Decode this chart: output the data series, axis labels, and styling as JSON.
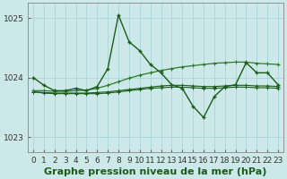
{
  "title": "Graphe pression niveau de la mer (hPa)",
  "background_color": "#cce8e8",
  "grid_color_v": "#aad4d4",
  "grid_color_h": "#aad4d4",
  "line_color_dark": "#1a5c1a",
  "line_color_mid": "#2d7a2d",
  "ylim": [
    1022.75,
    1025.25
  ],
  "yticks": [
    1023,
    1024,
    1025
  ],
  "xlim": [
    -0.5,
    23.5
  ],
  "xticks": [
    0,
    1,
    2,
    3,
    4,
    5,
    6,
    7,
    8,
    9,
    10,
    11,
    12,
    13,
    14,
    15,
    16,
    17,
    18,
    19,
    20,
    21,
    22,
    23
  ],
  "series_spiky": [
    1024.0,
    1023.87,
    1023.78,
    1023.78,
    1023.82,
    1023.78,
    1023.85,
    1024.15,
    1025.05,
    1024.6,
    1024.45,
    1024.22,
    1024.08,
    1023.88,
    1023.82,
    1023.52,
    1023.33,
    1023.68,
    1023.85,
    1023.88,
    1024.25,
    1024.08,
    1024.08,
    1023.88
  ],
  "series_trend": [
    1023.78,
    1023.78,
    1023.77,
    1023.77,
    1023.78,
    1023.79,
    1023.82,
    1023.87,
    1023.93,
    1023.99,
    1024.04,
    1024.08,
    1024.12,
    1024.15,
    1024.18,
    1024.2,
    1024.22,
    1024.24,
    1024.25,
    1024.26,
    1024.26,
    1024.24,
    1024.23,
    1024.22
  ],
  "series_flat1": [
    1023.76,
    1023.75,
    1023.74,
    1023.74,
    1023.74,
    1023.74,
    1023.75,
    1023.76,
    1023.78,
    1023.8,
    1023.82,
    1023.84,
    1023.86,
    1023.87,
    1023.87,
    1023.86,
    1023.85,
    1023.85,
    1023.86,
    1023.87,
    1023.87,
    1023.86,
    1023.86,
    1023.85
  ],
  "series_flat2": [
    1023.76,
    1023.74,
    1023.73,
    1023.73,
    1023.73,
    1023.73,
    1023.73,
    1023.74,
    1023.76,
    1023.78,
    1023.8,
    1023.82,
    1023.83,
    1023.84,
    1023.84,
    1023.83,
    1023.82,
    1023.82,
    1023.83,
    1023.84,
    1023.84,
    1023.83,
    1023.83,
    1023.82
  ],
  "title_fontsize": 8,
  "tick_fontsize": 6.5
}
